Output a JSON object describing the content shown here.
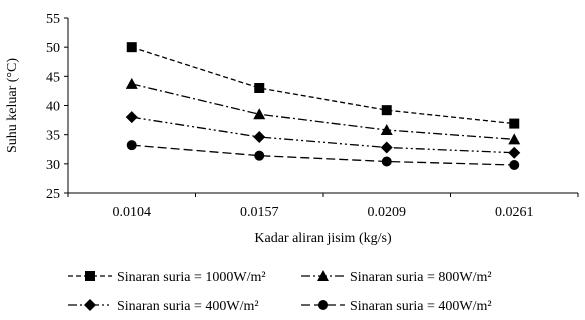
{
  "chart_data": {
    "type": "line",
    "title": "",
    "xlabel": "Kadar aliran jisim (kg/s)",
    "ylabel": "Suhu keluar (°C)",
    "categories": [
      "0.0104",
      "0.0157",
      "0.0209",
      "0.0261"
    ],
    "ylim": [
      25,
      55
    ],
    "yticks": [
      25,
      30,
      35,
      40,
      45,
      50,
      55
    ],
    "grid": false,
    "legend_position": "bottom",
    "series": [
      {
        "name": "Sinaran suria = 1000W/m²",
        "values": [
          50,
          43,
          39.2,
          36.9
        ],
        "marker": "square",
        "dash": "short-dash",
        "color": "#000000"
      },
      {
        "name": "Sinaran suria = 800W/m²",
        "values": [
          43.7,
          38.5,
          35.8,
          34.2
        ],
        "marker": "triangle",
        "dash": "dash-dot",
        "color": "#000000"
      },
      {
        "name": "Sinaran suria = 400W/m²",
        "values": [
          38,
          34.6,
          32.8,
          31.9
        ],
        "marker": "diamond",
        "dash": "dash-dot-dot",
        "color": "#000000"
      },
      {
        "name": "Sinaran suria = 400W/m²",
        "values": [
          33.2,
          31.4,
          30.4,
          29.8
        ],
        "marker": "circle",
        "dash": "long-dash",
        "color": "#000000"
      }
    ]
  }
}
